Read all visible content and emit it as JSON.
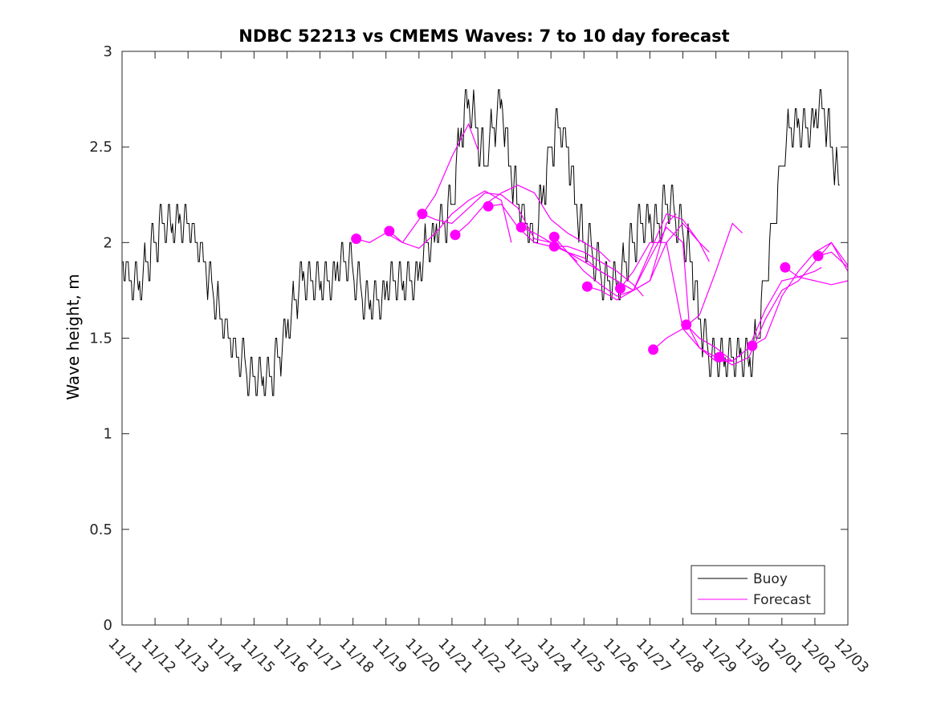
{
  "chart_data": {
    "type": "line",
    "title": "NDBC 52213 vs CMEMS Waves: 7 to 10 day forecast",
    "xlabel": "",
    "ylabel": "Wave height, m",
    "xlim": [
      0,
      22
    ],
    "ylim": [
      0,
      3
    ],
    "x_unit": "days since 11/11",
    "yticks": [
      0,
      0.5,
      1,
      1.5,
      2,
      2.5,
      3
    ],
    "ytick_labels": [
      "0",
      "0.5",
      "1",
      "1.5",
      "2",
      "2.5",
      "3"
    ],
    "xtick_labels": [
      "11/11",
      "11/12",
      "11/13",
      "11/14",
      "11/15",
      "11/16",
      "11/17",
      "11/18",
      "11/19",
      "11/20",
      "11/21",
      "11/22",
      "11/23",
      "11/24",
      "11/25",
      "11/26",
      "11/27",
      "11/28",
      "11/29",
      "11/30",
      "12/01",
      "12/02",
      "12/03"
    ],
    "grid": false,
    "legend_position": "bottom-right",
    "legend": [
      {
        "label": "Buoy",
        "color": "#000000"
      },
      {
        "label": "Forecast",
        "color": "#ff00ff"
      }
    ],
    "series": [
      {
        "name": "Buoy",
        "color": "#000000",
        "x": [
          0,
          0.25,
          0.5,
          0.75,
          1,
          1.25,
          1.5,
          1.75,
          2,
          2.25,
          2.5,
          2.75,
          3,
          3.25,
          3.5,
          3.75,
          4,
          4.25,
          4.5,
          4.75,
          5,
          5.25,
          5.5,
          5.75,
          6,
          6.25,
          6.5,
          6.75,
          7,
          7.25,
          7.5,
          7.75,
          8,
          8.25,
          8.5,
          8.75,
          9,
          9.25,
          9.5,
          9.75,
          10,
          10.25,
          10.5,
          10.75,
          11,
          11.25,
          11.5,
          11.75,
          12,
          12.25,
          12.5,
          12.75,
          13,
          13.25,
          13.5,
          13.75,
          14,
          14.25,
          14.5,
          14.75,
          15,
          15.25,
          15.5,
          15.75,
          16,
          16.25,
          16.5,
          16.75,
          17,
          17.25,
          17.5,
          17.75,
          18,
          18.25,
          18.5,
          18.75,
          19,
          19.25,
          19.5,
          19.75,
          20,
          20.25,
          20.5,
          20.75,
          21,
          21.25,
          21.5,
          21.75,
          22
        ],
        "y": [
          1.9,
          1.8,
          1.75,
          1.9,
          2.0,
          2.1,
          2.05,
          2.15,
          2.1,
          2.0,
          1.9,
          1.75,
          1.6,
          1.5,
          1.4,
          1.35,
          1.3,
          1.25,
          1.3,
          1.4,
          1.55,
          1.7,
          1.85,
          1.8,
          1.75,
          1.8,
          1.85,
          1.9,
          1.85,
          1.75,
          1.65,
          1.7,
          1.75,
          1.8,
          1.75,
          1.8,
          1.85,
          2.0,
          2.05,
          2.1,
          2.2,
          2.55,
          2.75,
          2.6,
          2.4,
          2.6,
          2.75,
          2.4,
          2.2,
          2.1,
          2.0,
          2.25,
          2.5,
          2.6,
          2.5,
          2.2,
          2.0,
          1.95,
          1.85,
          1.8,
          1.75,
          1.9,
          2.0,
          2.1,
          2.15,
          2.1,
          2.2,
          2.15,
          2.05,
          1.9,
          1.6,
          1.45,
          1.4,
          1.35,
          1.4,
          1.45,
          1.35,
          1.5,
          1.8,
          2.1,
          2.4,
          2.6,
          2.65,
          2.6,
          2.65,
          2.7,
          2.5,
          2.3,
          null
        ]
      },
      {
        "name": "Forecast",
        "color": "#ff00ff",
        "runs": [
          {
            "x": [
              7.1,
              7.5,
              8.0,
              8.5,
              9.0,
              9.5,
              10.0,
              10.5,
              10.8
            ],
            "y": [
              2.02,
              2.0,
              2.05,
              2.0,
              2.12,
              2.25,
              2.45,
              2.62,
              2.48
            ]
          },
          {
            "x": [
              8.1,
              8.5,
              9.0,
              9.5,
              10.0,
              10.5,
              11.0,
              11.5,
              11.8
            ],
            "y": [
              2.06,
              2.0,
              1.97,
              2.05,
              2.15,
              2.22,
              2.27,
              2.22,
              2.0
            ]
          },
          {
            "x": [
              9.1,
              9.5,
              10.0,
              10.5,
              11.0,
              11.5,
              12.0,
              12.5,
              13.0,
              13.5,
              13.8
            ],
            "y": [
              2.15,
              2.12,
              2.1,
              2.18,
              2.26,
              2.25,
              2.18,
              2.02,
              2.0,
              1.95,
              1.9
            ]
          },
          {
            "x": [
              10.1,
              10.5,
              11.0,
              11.5,
              12.0,
              12.5,
              13.0,
              13.5,
              14.0,
              14.5,
              14.8
            ],
            "y": [
              2.04,
              2.1,
              2.2,
              2.26,
              2.3,
              2.26,
              2.12,
              2.05,
              2.0,
              1.95,
              1.9
            ]
          },
          {
            "x": [
              11.1,
              11.5,
              12.0,
              12.5,
              13.0,
              13.5,
              14.0,
              14.5,
              15.0,
              15.5,
              15.8
            ],
            "y": [
              2.19,
              2.2,
              2.08,
              2.0,
              1.98,
              1.98,
              1.95,
              1.9,
              1.85,
              1.78,
              1.72
            ]
          },
          {
            "x": [
              12.1,
              12.5,
              13.0,
              13.5,
              14.0,
              14.5,
              15.0,
              15.5,
              16.0,
              16.5,
              16.8
            ],
            "y": [
              2.08,
              2.05,
              2.0,
              1.95,
              1.9,
              1.85,
              1.8,
              1.75,
              1.8,
              2.1,
              2.15
            ]
          },
          {
            "x": [
              13.1,
              13.5,
              14.0,
              14.5,
              15.0,
              15.5,
              16.0,
              16.5,
              17.0,
              17.5,
              17.8
            ],
            "y": [
              2.03,
              1.95,
              1.85,
              1.78,
              1.72,
              1.75,
              1.95,
              2.15,
              2.12,
              2.0,
              1.95
            ]
          },
          {
            "x": [
              13.1,
              13.5,
              14.0,
              14.5,
              15.0,
              15.5,
              16.0,
              16.5,
              17.0,
              17.5,
              17.8
            ],
            "y": [
              1.98,
              1.95,
              1.92,
              1.85,
              1.8,
              1.75,
              1.8,
              2.0,
              2.1,
              2.0,
              1.9
            ]
          },
          {
            "x": [
              14.1,
              14.5,
              15.0,
              15.5,
              16.0,
              16.5,
              17.0,
              17.2,
              17.5,
              18.0,
              18.5
            ],
            "y": [
              1.77,
              1.75,
              1.7,
              1.75,
              1.92,
              2.08,
              2.0,
              1.55,
              1.45,
              1.4,
              1.38
            ]
          },
          {
            "x": [
              15.1,
              15.5,
              16.0,
              16.5,
              17.0,
              17.5,
              18.0,
              18.5,
              18.8
            ],
            "y": [
              1.76,
              1.85,
              2.0,
              2.0,
              1.55,
              1.45,
              1.38,
              1.38,
              1.42
            ]
          },
          {
            "x": [
              16.1,
              16.5,
              17.0,
              17.5,
              18.0,
              18.5,
              18.8
            ],
            "y": [
              1.44,
              1.5,
              1.55,
              1.62,
              1.85,
              2.1,
              2.05
            ]
          },
          {
            "x": [
              17.1,
              17.5,
              18.0,
              18.5,
              19.0,
              19.5,
              20.0,
              20.5,
              21.0,
              21.5,
              22.0
            ],
            "y": [
              1.57,
              1.5,
              1.45,
              1.38,
              1.45,
              1.65,
              1.8,
              1.82,
              1.8,
              1.78,
              1.8
            ]
          },
          {
            "x": [
              18.1,
              18.5,
              19.0,
              19.5,
              20.0,
              20.5,
              21.0,
              21.5,
              22.0
            ],
            "y": [
              1.4,
              1.36,
              1.4,
              1.6,
              1.75,
              1.8,
              1.9,
              2.0,
              1.88
            ]
          },
          {
            "x": [
              19.1,
              19.5,
              20.0,
              20.5,
              21.0,
              21.5,
              22.0
            ],
            "y": [
              1.46,
              1.5,
              1.72,
              1.85,
              1.95,
              2.0,
              1.85
            ]
          },
          {
            "x": [
              20.1,
              20.5,
              21.0,
              21.2
            ],
            "y": [
              1.87,
              1.82,
              1.85,
              1.87
            ]
          },
          {
            "x": [
              21.1,
              21.5,
              22.0
            ],
            "y": [
              1.93,
              1.95,
              1.87
            ]
          }
        ],
        "markers": {
          "x": [
            7.1,
            8.1,
            9.1,
            10.1,
            11.1,
            12.1,
            13.1,
            13.1,
            14.1,
            15.1,
            16.1,
            17.1,
            18.1,
            19.1,
            20.1,
            21.1
          ],
          "y": [
            2.02,
            2.06,
            2.15,
            2.04,
            2.19,
            2.08,
            2.03,
            1.98,
            1.77,
            1.76,
            1.44,
            1.57,
            1.4,
            1.46,
            1.87,
            1.93
          ]
        }
      }
    ]
  }
}
